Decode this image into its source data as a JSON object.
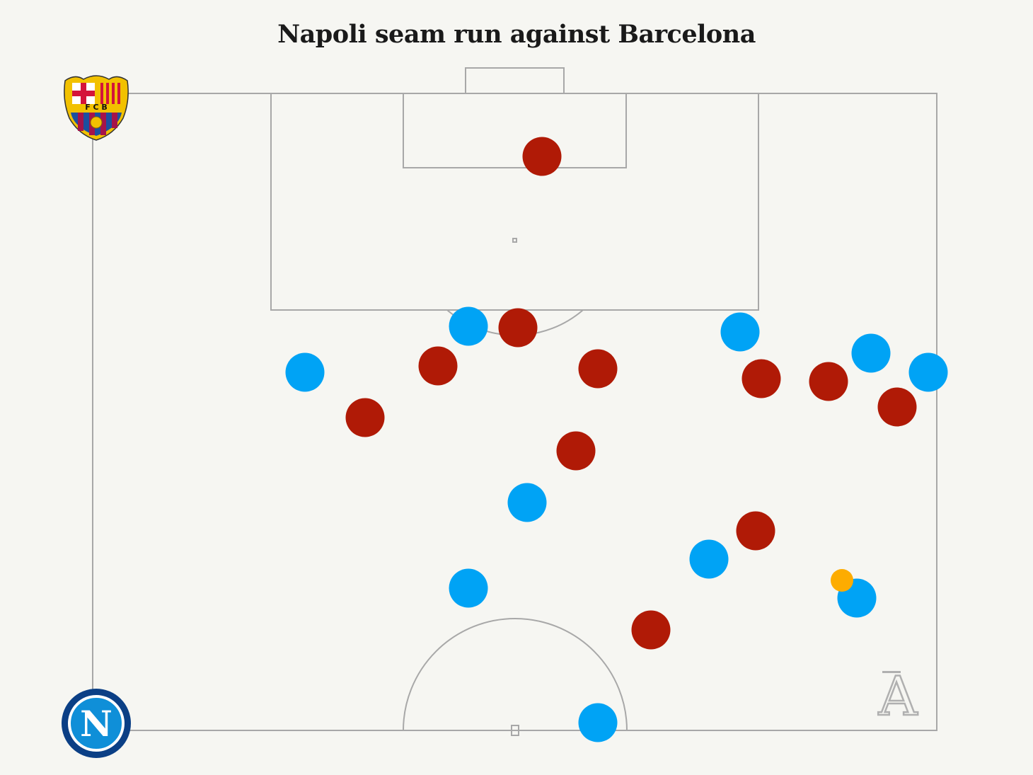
{
  "title": "Napoli seam run against Barcelona",
  "colors": {
    "background": "#f6f6f2",
    "pitch_lines": "#a8a8a8",
    "red_players": "#b01a06",
    "blue_players": "#00a3f5",
    "ball": "#fdac00"
  },
  "logos": {
    "top_left": {
      "icon": "barcelona-crest",
      "lettering": "FCB"
    },
    "bottom_left": {
      "icon": "napoli-crest",
      "lettering": "N"
    },
    "watermark": {
      "icon": "the-athletic-logo",
      "lettering": "A"
    }
  }
}
